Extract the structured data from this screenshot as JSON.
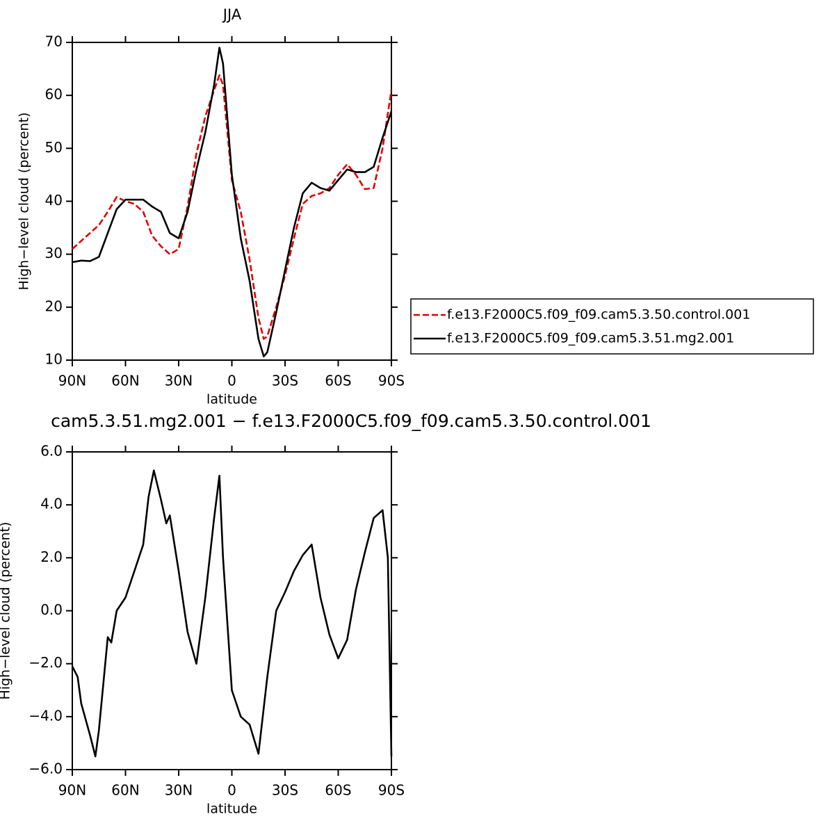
{
  "chart_data": [
    {
      "type": "line",
      "title": "JJA",
      "xlabel": "latitude",
      "ylabel": "High−level cloud (percent)",
      "x": [
        90,
        85,
        80,
        75,
        70,
        65,
        60,
        55,
        50,
        45,
        40,
        35,
        30,
        25,
        20,
        15,
        10,
        7,
        5,
        0,
        -5,
        -10,
        -15,
        -18,
        -20,
        -25,
        -30,
        -35,
        -40,
        -45,
        -50,
        -55,
        -60,
        -65,
        -70,
        -75,
        -80,
        -85,
        -90
      ],
      "xlim": [
        90,
        -90
      ],
      "xticks": [
        {
          "value": 90,
          "label": "90N"
        },
        {
          "value": 60,
          "label": "60N"
        },
        {
          "value": 30,
          "label": "30N"
        },
        0,
        {
          "value": -30,
          "label": "30S"
        },
        {
          "value": -60,
          "label": "60S"
        },
        {
          "value": -90,
          "label": "90S"
        }
      ],
      "ylim": [
        10,
        70
      ],
      "yticks": [
        10,
        20,
        30,
        40,
        50,
        60,
        70
      ],
      "legend": "right",
      "series": [
        {
          "name": "f.e13.F2000C5.f09_f09.cam5.3.50.control.001",
          "color": "#e00000",
          "linestyle": "dashed",
          "values": [
            31,
            32.5,
            34,
            35.5,
            38,
            40.8,
            40,
            39.5,
            38,
            33.5,
            31.5,
            30,
            31,
            39,
            49,
            56,
            61,
            63.8,
            62,
            44,
            38,
            29,
            18,
            14,
            14.5,
            20,
            26,
            33,
            39.5,
            41,
            41.5,
            42.5,
            45,
            47,
            45,
            42.3,
            42.5,
            50,
            61
          ]
        },
        {
          "name": "f.e13.F2000C5.f09_f09.cam5.3.51.mg2.001",
          "color": "#000000",
          "linestyle": "solid",
          "values": [
            28.5,
            28.8,
            28.7,
            29.5,
            34,
            38.5,
            40.3,
            40.3,
            40.3,
            39,
            38,
            34,
            33,
            38,
            46,
            53,
            62,
            69,
            66,
            45,
            33,
            25,
            14,
            10.7,
            11.5,
            19,
            27,
            35,
            41.5,
            43.5,
            42.5,
            42,
            44,
            46,
            45.5,
            45.5,
            46.5,
            52,
            57
          ]
        }
      ]
    },
    {
      "type": "line",
      "title": "cam5.3.51.mg2.001  −  f.e13.F2000C5.f09_f09.cam5.3.50.control.001",
      "xlabel": "latitude",
      "ylabel": "High−level cloud (percent)",
      "x": [
        90,
        87,
        85,
        80,
        77,
        75,
        70,
        68,
        65,
        60,
        55,
        50,
        47,
        44,
        40,
        37,
        35,
        30,
        25,
        20,
        15,
        10,
        7,
        5,
        0,
        -5,
        -10,
        -15,
        -20,
        -25,
        -30,
        -35,
        -40,
        -45,
        -50,
        -55,
        -60,
        -65,
        -70,
        -75,
        -80,
        -85,
        -88,
        -90
      ],
      "xlim": [
        90,
        -90
      ],
      "xticks": [
        {
          "value": 90,
          "label": "90N"
        },
        {
          "value": 60,
          "label": "60N"
        },
        {
          "value": 30,
          "label": "30N"
        },
        0,
        {
          "value": -30,
          "label": "30S"
        },
        {
          "value": -60,
          "label": "60S"
        },
        {
          "value": -90,
          "label": "90S"
        }
      ],
      "ylim": [
        -6,
        6
      ],
      "yticks": [
        {
          "value": -6,
          "label": "−6.0"
        },
        {
          "value": -4,
          "label": "−4.0"
        },
        {
          "value": -2,
          "label": "−2.0"
        },
        {
          "value": 0,
          "label": "0.0"
        },
        {
          "value": 2,
          "label": "2.0"
        },
        {
          "value": 4,
          "label": "4.0"
        },
        {
          "value": 6,
          "label": "6.0"
        }
      ],
      "color": "#000000",
      "values": [
        -2.1,
        -2.5,
        -3.5,
        -4.7,
        -5.5,
        -4.5,
        -1.0,
        -1.2,
        0,
        0.5,
        1.5,
        2.5,
        4.3,
        5.3,
        4.2,
        3.3,
        3.6,
        1.5,
        -0.8,
        -2.0,
        0.5,
        3.5,
        5.1,
        2.0,
        -3.0,
        -4.0,
        -4.3,
        -5.4,
        -2.5,
        0,
        0.7,
        1.5,
        2.1,
        2.5,
        0.5,
        -0.9,
        -1.8,
        -1.1,
        0.8,
        2.2,
        3.5,
        3.8,
        2.0,
        -5.5
      ]
    }
  ]
}
